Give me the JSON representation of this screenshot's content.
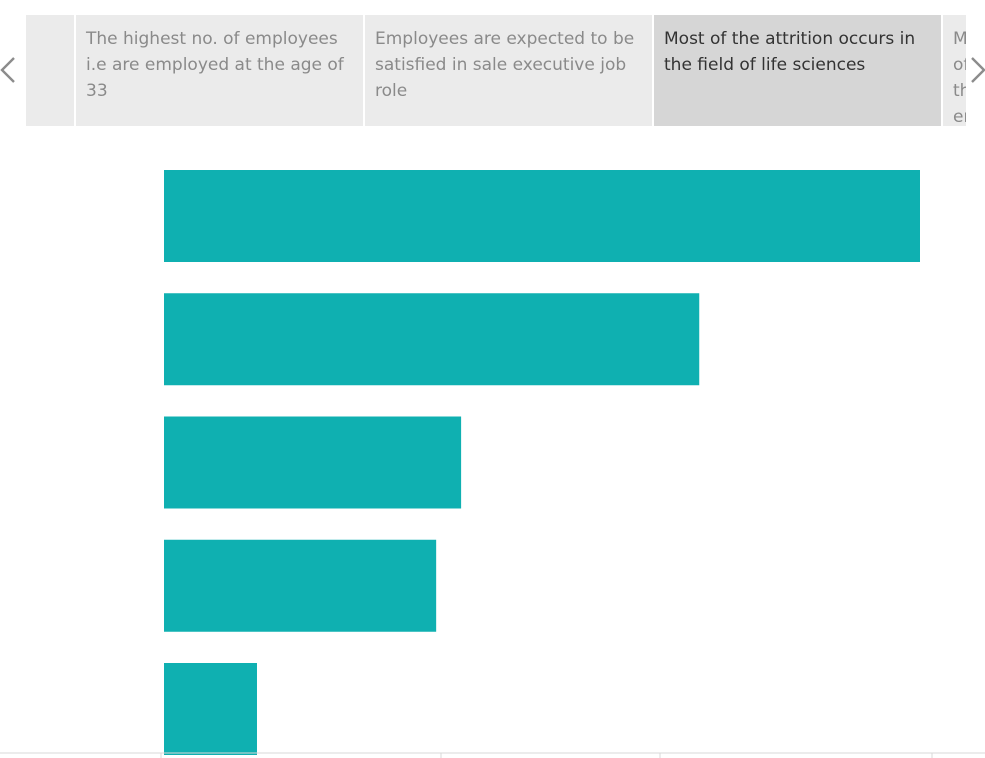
{
  "story": {
    "points": [
      {
        "label": ""
      },
      {
        "label": "The highest no. of employees i.e are employed at the age of 33"
      },
      {
        "label": "Employees are expected to be satisfied in sale executive job role"
      },
      {
        "label": "Most of the attrition occurs in the field of life sciences"
      },
      {
        "label": "Most of the employees who left the organization are from the field of ..."
      }
    ],
    "active_index": 3,
    "prev_icon": "chevron-left-icon",
    "next_icon": "chevron-right-icon"
  },
  "colors": {
    "bar": "#0fb0b1",
    "nav_bg": "#ebebeb",
    "nav_active_bg": "#d6d6d6",
    "axis_line": "#d8d8d8"
  },
  "chart_data": {
    "type": "bar",
    "orientation": "horizontal",
    "series": [
      {
        "values": [
          100,
          70.8,
          39.3,
          36.0,
          12.3
        ]
      }
    ],
    "xlim": [
      0,
      100
    ],
    "grid": false,
    "legend": "none"
  }
}
